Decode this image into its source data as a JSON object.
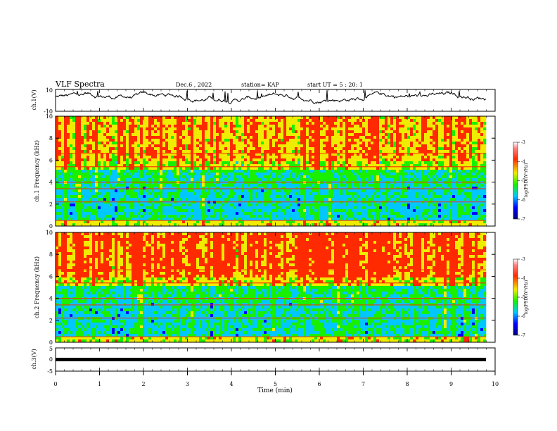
{
  "header": {
    "title": "VLF Spectra",
    "date": "Dec.6 , 2022",
    "station": "station= KAP",
    "start": "start UT = 5 : 20: 1"
  },
  "colors": {
    "spectrum_low": "#00007a",
    "spectrum_mid_low": "#00c8ff",
    "spectrum_mid": "#18f000",
    "spectrum_mid_high": "#f0ec00",
    "spectrum_high": "#ff2a00",
    "spectrum_top": "#ffffff"
  },
  "chart_data": [
    {
      "type": "line",
      "panel": "ch1-waveform",
      "ylabel": "ch.1(V)",
      "ylim": [
        -10,
        10
      ],
      "yticks": [
        "10",
        "-10"
      ],
      "description_values": "noisy waveform oscillating near +3 V",
      "x": [
        0,
        0.5,
        1,
        1.5,
        2,
        2.5,
        3,
        3.5,
        4,
        4.5,
        5,
        5.5,
        6,
        6.5,
        7,
        7.5,
        8,
        8.5,
        9,
        9.5,
        9.8
      ],
      "y": [
        3,
        2,
        1,
        3,
        2,
        3,
        4,
        1,
        0,
        2,
        1,
        3,
        0,
        2,
        3,
        1,
        2,
        4,
        3,
        2,
        0
      ]
    },
    {
      "type": "heatmap",
      "panel": "ch1-spectrogram",
      "ylabel": "ch.1 Frequency (kHz)",
      "ylim": [
        0,
        10
      ],
      "yticks": [
        "0",
        "2",
        "4",
        "6",
        "8",
        "10"
      ],
      "zlim": [
        -7,
        -3
      ],
      "colorbar_label": "log(PSD)(V²/Hz)",
      "colorbar_ticks": [
        "-3",
        "-4",
        "-5",
        "-6",
        "-7"
      ]
    },
    {
      "type": "heatmap",
      "panel": "ch2-spectrogram",
      "ylabel": "ch.2 Frequency (kHz)",
      "ylim": [
        0,
        10
      ],
      "yticks": [
        "0",
        "2",
        "4",
        "6",
        "8",
        "10"
      ],
      "zlim": [
        -7,
        -3
      ],
      "colorbar_label": "log(PSD)(V²/Hz)",
      "colorbar_ticks": [
        "-3",
        "-4",
        "-5",
        "-6",
        "-7"
      ]
    },
    {
      "type": "line",
      "panel": "ch3-waveform",
      "ylabel": "ch.3(V)",
      "ylim": [
        -5,
        5
      ],
      "yticks": [
        "5",
        "0",
        "-5"
      ],
      "x": [
        0,
        9.8
      ],
      "y": [
        0,
        0
      ]
    }
  ],
  "xaxis": {
    "label": "Time (min)",
    "xlim": [
      0,
      10
    ],
    "ticks": [
      "0",
      "1",
      "2",
      "3",
      "4",
      "5",
      "6",
      "7",
      "8",
      "9",
      "10"
    ]
  }
}
